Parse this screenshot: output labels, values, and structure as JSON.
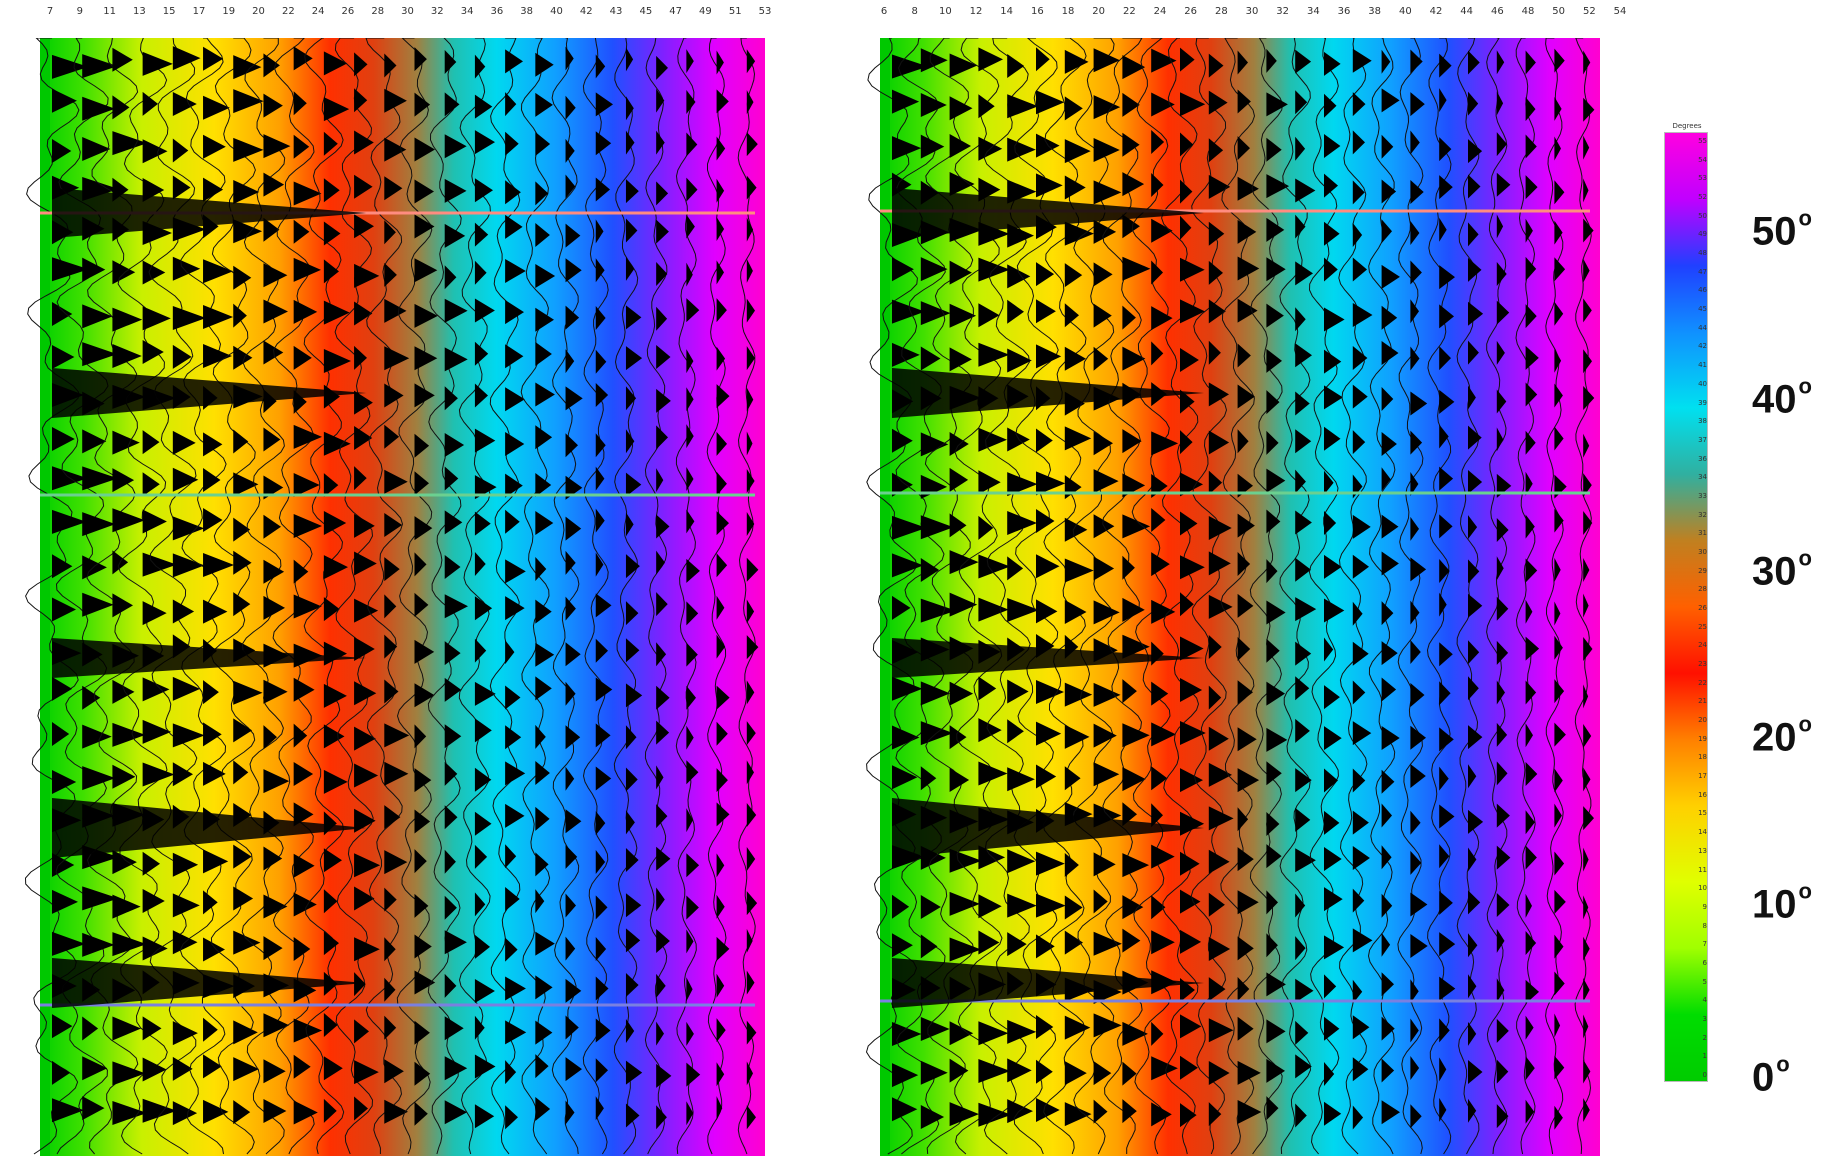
{
  "left_panel": {
    "tick_labels": [
      "7",
      "9",
      "11",
      "13",
      "15",
      "17",
      "19",
      "20",
      "22",
      "24",
      "26",
      "28",
      "30",
      "32",
      "34",
      "36",
      "38",
      "40",
      "42",
      "43",
      "45",
      "47",
      "49",
      "51",
      "53"
    ]
  },
  "right_panel": {
    "tick_labels": [
      "6",
      "8",
      "10",
      "12",
      "14",
      "16",
      "18",
      "20",
      "22",
      "24",
      "26",
      "28",
      "30",
      "32",
      "34",
      "36",
      "38",
      "40",
      "42",
      "44",
      "46",
      "48",
      "50",
      "52",
      "54"
    ]
  },
  "colorbar": {
    "title": "Degrees",
    "labels": [
      "55",
      "54",
      "53",
      "52",
      "50",
      "49",
      "48",
      "47",
      "46",
      "45",
      "44",
      "42",
      "41",
      "40",
      "39",
      "38",
      "37",
      "36",
      "34",
      "33",
      "32",
      "31",
      "30",
      "29",
      "28",
      "26",
      "25",
      "24",
      "23",
      "22",
      "21",
      "20",
      "19",
      "18",
      "17",
      "16",
      "15",
      "14",
      "13",
      "11",
      "10",
      "9",
      "8",
      "7",
      "6",
      "5",
      "4",
      "3",
      "2",
      "1",
      "0"
    ],
    "colors": [
      "#ff00e0",
      "#c000ff",
      "#2040ff",
      "#1090ff",
      "#00e0f0",
      "#30b0a0",
      "#c08020",
      "#ff6000",
      "#ff1000",
      "#ff8000",
      "#ffd000",
      "#e0ff00",
      "#a0ff00",
      "#00dd00",
      "#00cc00"
    ],
    "angle_labels": [
      "50",
      "40",
      "30",
      "20",
      "10",
      "0"
    ]
  }
}
